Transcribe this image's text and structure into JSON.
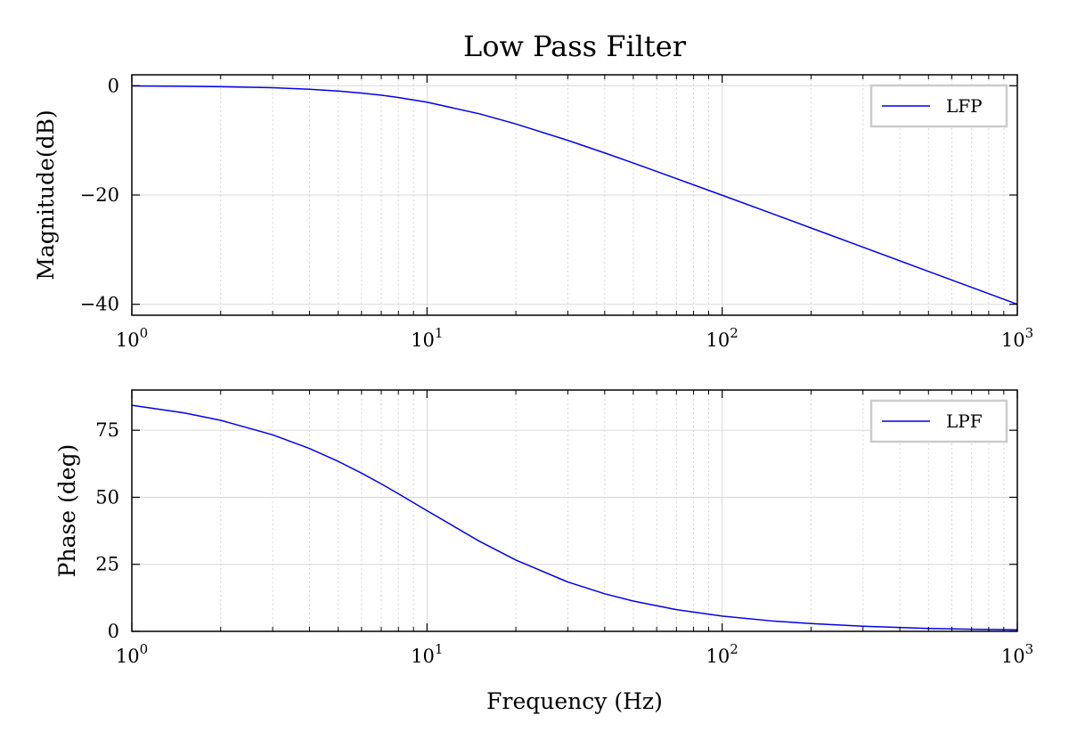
{
  "figure": {
    "title": "Low Pass Filter",
    "colors": {
      "line": "#0000ee",
      "grid": "#d9d9d9",
      "axis": "#000000",
      "legend_border": "#cccccc"
    }
  },
  "chart_data": [
    {
      "type": "line",
      "xscale": "log",
      "xlim": [
        1,
        1000
      ],
      "ylim": [
        -42,
        2
      ],
      "xlabel": "",
      "ylabel": "Magnitude(dB)",
      "xticks": [
        1,
        10,
        100,
        1000
      ],
      "xtick_labels": [
        {
          "base": "10",
          "exp": "0"
        },
        {
          "base": "10",
          "exp": "1"
        },
        {
          "base": "10",
          "exp": "2"
        },
        {
          "base": "10",
          "exp": "3"
        }
      ],
      "yticks": [
        0,
        -20,
        -40
      ],
      "ytick_labels": [
        "0",
        "−20",
        "−40"
      ],
      "grid": true,
      "legend": "top-right",
      "series": [
        {
          "name": "LFP",
          "x": [
            1,
            1.5,
            2,
            3,
            4,
            5,
            6,
            7,
            8,
            10,
            15,
            20,
            30,
            40,
            50,
            70,
            100,
            150,
            200,
            300,
            500,
            700,
            1000
          ],
          "y": [
            -0.04,
            -0.1,
            -0.17,
            -0.37,
            -0.64,
            -0.97,
            -1.34,
            -1.73,
            -2.15,
            -3.01,
            -5.12,
            -6.99,
            -10.0,
            -12.3,
            -14.15,
            -17.0,
            -20.04,
            -23.53,
            -26.03,
            -29.55,
            -33.98,
            -36.9,
            -40.0
          ]
        }
      ]
    },
    {
      "type": "line",
      "xscale": "log",
      "xlim": [
        1,
        1000
      ],
      "ylim": [
        0,
        90
      ],
      "xlabel": "Frequency (Hz)",
      "ylabel": "Phase (deg)",
      "xticks": [
        1,
        10,
        100,
        1000
      ],
      "xtick_labels": [
        {
          "base": "10",
          "exp": "0"
        },
        {
          "base": "10",
          "exp": "1"
        },
        {
          "base": "10",
          "exp": "2"
        },
        {
          "base": "10",
          "exp": "3"
        }
      ],
      "yticks": [
        0,
        25,
        50,
        75
      ],
      "ytick_labels": [
        "0",
        "25",
        "50",
        "75"
      ],
      "grid": true,
      "legend": "top-right",
      "series": [
        {
          "name": "LPF",
          "x": [
            1,
            1.5,
            2,
            3,
            4,
            5,
            6,
            7,
            8,
            10,
            15,
            20,
            30,
            40,
            50,
            70,
            100,
            150,
            200,
            300,
            500,
            700,
            1000
          ],
          "y": [
            84.3,
            81.5,
            78.7,
            73.3,
            68.2,
            63.4,
            59.0,
            55.0,
            51.3,
            45.0,
            33.7,
            26.6,
            18.4,
            14.0,
            11.3,
            8.1,
            5.7,
            3.8,
            2.9,
            1.9,
            1.1,
            0.8,
            0.6
          ]
        }
      ]
    }
  ]
}
